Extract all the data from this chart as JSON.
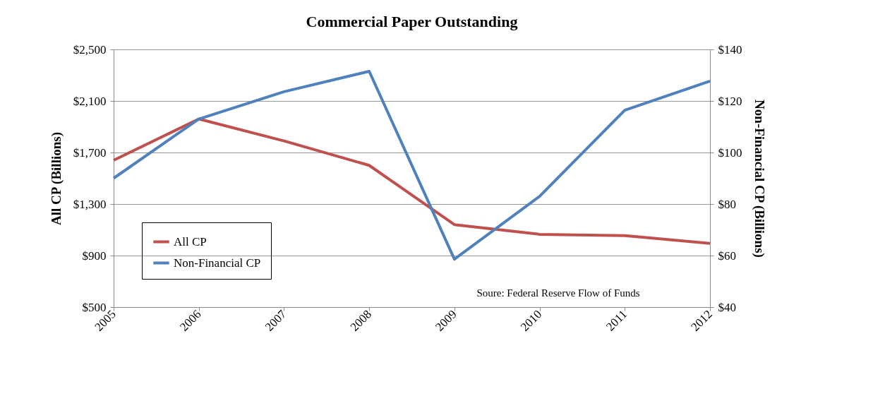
{
  "chart_data": {
    "type": "line",
    "title": "Commercial Paper Outstanding",
    "ylabel": "All CP (Billions)",
    "y2label": "Non-Financial CP (Billions)",
    "x": [
      2005,
      2006,
      2007,
      2008,
      2009,
      2010,
      2011,
      2012
    ],
    "xlim": [
      2005,
      2012
    ],
    "xticks": [
      2005,
      2006,
      2007,
      2008,
      2009,
      2010,
      2011,
      2012
    ],
    "ylim": [
      500,
      2500
    ],
    "yticks": [
      {
        "value": 500,
        "label": "$500"
      },
      {
        "value": 900,
        "label": "$900"
      },
      {
        "value": 1300,
        "label": "$1,300"
      },
      {
        "value": 1700,
        "label": "$1,700"
      },
      {
        "value": 2100,
        "label": "$2,100"
      },
      {
        "value": 2500,
        "label": "$2,500"
      }
    ],
    "y2lim": [
      40,
      140
    ],
    "y2ticks": [
      {
        "value": 40,
        "label": "$40"
      },
      {
        "value": 60,
        "label": "$60"
      },
      {
        "value": 80,
        "label": "$80"
      },
      {
        "value": 100,
        "label": "$100"
      },
      {
        "value": 120,
        "label": "$120"
      },
      {
        "value": 140,
        "label": "$140"
      }
    ],
    "series": [
      {
        "name": "All CP",
        "color": "#c0504d",
        "values": [
          1640,
          1960,
          1790,
          1600,
          1140,
          1065,
          1055,
          995
        ]
      },
      {
        "name": "Non-Financial CP",
        "color": "#4f81bd",
        "axis": "y2",
        "values": [
          90,
          113,
          123.6,
          131.5,
          58.6,
          83,
          116.4,
          127.7
        ]
      }
    ],
    "grid": "y",
    "legend": "bottom left",
    "marker": "none",
    "line_style": "solid",
    "annotations": [
      "Soure: Federal Reserve Flow of Funds"
    ]
  }
}
